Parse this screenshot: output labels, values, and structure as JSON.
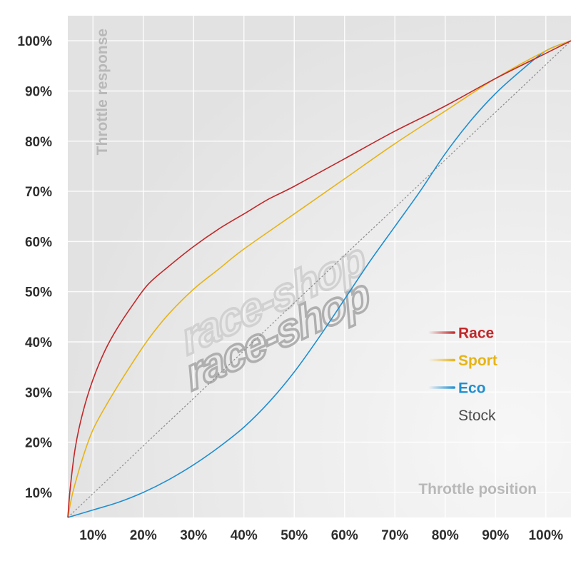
{
  "chart_data": {
    "type": "line",
    "title": "",
    "xlabel": "Throttle position",
    "ylabel": "Throttle response",
    "xlim": [
      5,
      105
    ],
    "ylim": [
      5,
      105
    ],
    "x_ticks": [
      10,
      20,
      30,
      40,
      50,
      60,
      70,
      80,
      90,
      100
    ],
    "y_ticks": [
      10,
      20,
      30,
      40,
      50,
      60,
      70,
      80,
      90,
      100
    ],
    "tick_format": "{v}%",
    "grid": true,
    "legend_position": "right",
    "series": [
      {
        "name": "Race",
        "color": "#c0282a",
        "dashed": false,
        "points": [
          [
            5,
            5
          ],
          [
            5.5,
            11
          ],
          [
            6.5,
            19
          ],
          [
            8,
            26
          ],
          [
            10,
            32.5
          ],
          [
            12.5,
            38.5
          ],
          [
            15,
            43
          ],
          [
            18,
            47.5
          ],
          [
            21,
            51.5
          ],
          [
            25,
            55
          ],
          [
            30,
            59
          ],
          [
            35,
            62.5
          ],
          [
            40,
            65.5
          ],
          [
            45,
            68.5
          ],
          [
            50,
            71
          ],
          [
            60,
            76.5
          ],
          [
            70,
            82
          ],
          [
            80,
            87
          ],
          [
            90,
            92.5
          ],
          [
            100,
            97.5
          ],
          [
            105,
            100
          ]
        ]
      },
      {
        "name": "Sport",
        "color": "#e6b417",
        "dashed": false,
        "points": [
          [
            5,
            5
          ],
          [
            6,
            10
          ],
          [
            8,
            17
          ],
          [
            10,
            22.5
          ],
          [
            13,
            28
          ],
          [
            17,
            34.5
          ],
          [
            21,
            40.5
          ],
          [
            25,
            45.5
          ],
          [
            30,
            50.5
          ],
          [
            35,
            54.5
          ],
          [
            40,
            58.5
          ],
          [
            50,
            65.5
          ],
          [
            60,
            72.5
          ],
          [
            70,
            79.5
          ],
          [
            80,
            86
          ],
          [
            90,
            92.5
          ],
          [
            100,
            98
          ],
          [
            105,
            100
          ]
        ]
      },
      {
        "name": "Eco",
        "color": "#1f8fd0",
        "dashed": false,
        "points": [
          [
            5,
            5
          ],
          [
            10,
            6.5
          ],
          [
            15,
            8
          ],
          [
            20,
            10
          ],
          [
            25,
            12.5
          ],
          [
            30,
            15.5
          ],
          [
            35,
            19
          ],
          [
            40,
            23
          ],
          [
            45,
            28
          ],
          [
            50,
            34
          ],
          [
            55,
            41
          ],
          [
            60,
            48.5
          ],
          [
            65,
            56
          ],
          [
            70,
            63
          ],
          [
            75,
            70
          ],
          [
            80,
            77.5
          ],
          [
            85,
            84
          ],
          [
            90,
            89.5
          ],
          [
            95,
            94
          ],
          [
            100,
            98
          ],
          [
            105,
            100
          ]
        ]
      },
      {
        "name": "Stock",
        "color": "#8c8c8c",
        "dashed": true,
        "points": [
          [
            5,
            5
          ],
          [
            105,
            100
          ]
        ]
      }
    ]
  },
  "watermark": {
    "text": "race-shop"
  }
}
